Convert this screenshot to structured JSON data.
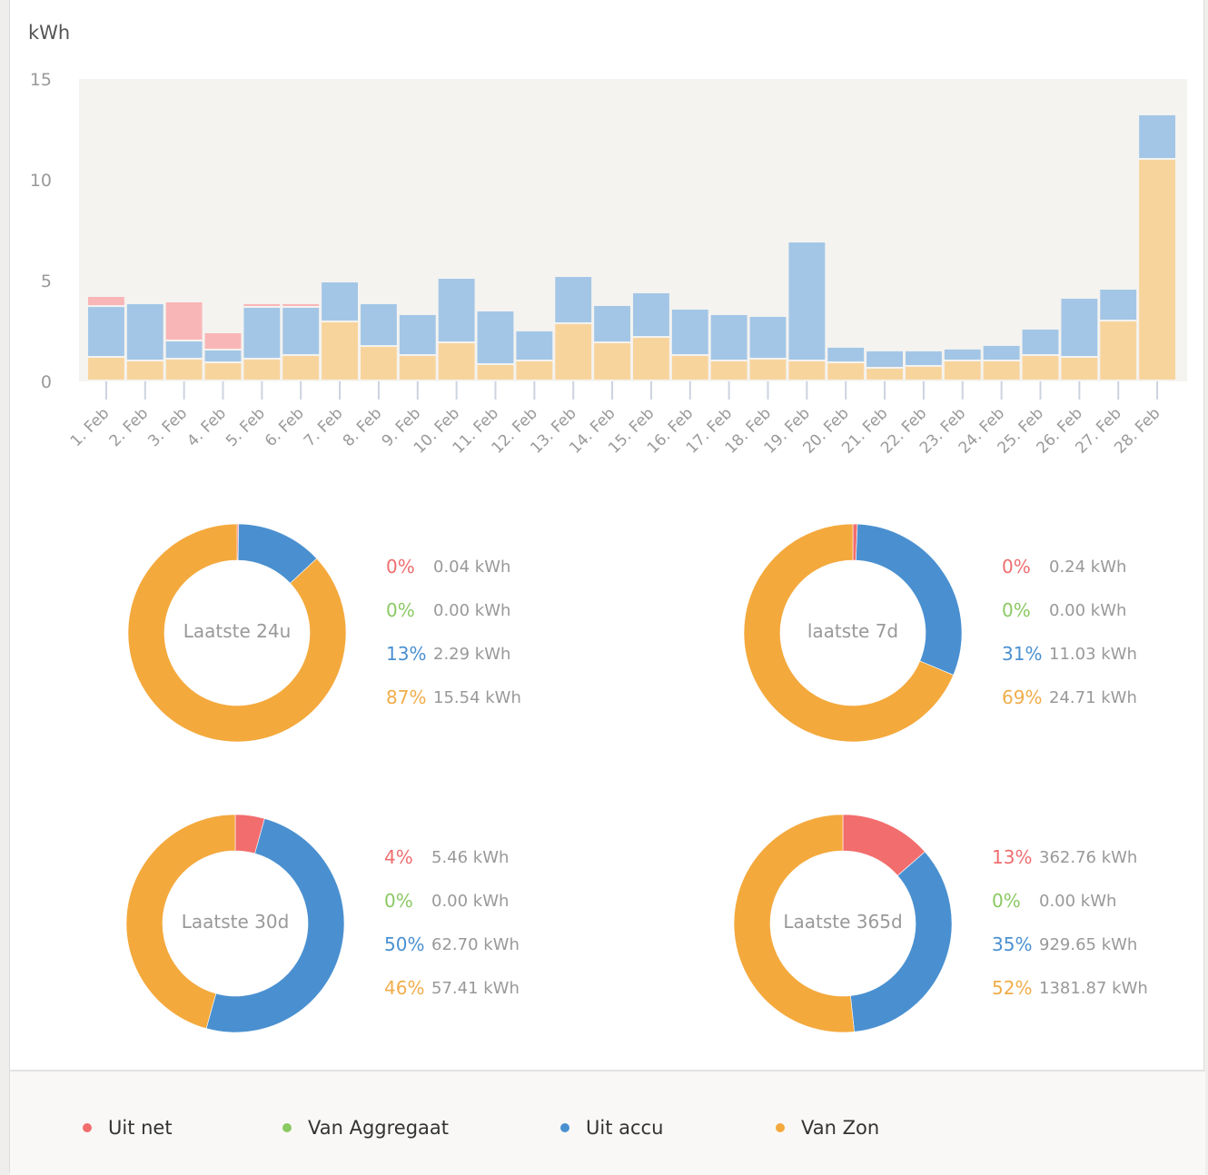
{
  "colors": {
    "uit_net": "#f26d6d",
    "van_aggregaat": "#8bc963",
    "uit_accu": "#4a90d0",
    "van_zon": "#f4a93d",
    "bar_uit_net": "#f9b6b6",
    "bar_uit_accu": "#a3c6e6",
    "bar_van_zon": "#f8d49d",
    "plot_bg": "#f4f3f0"
  },
  "chart_data": [
    {
      "type": "bar",
      "stacked": true,
      "title": "",
      "ylabel": "kWh",
      "xlabel": "",
      "ylim": [
        0,
        15
      ],
      "yticks": [
        0,
        5,
        10,
        15
      ],
      "grid": false,
      "categories": [
        "1. Feb",
        "2. Feb",
        "3. Feb",
        "4. Feb",
        "5. Feb",
        "6. Feb",
        "7. Feb",
        "8. Feb",
        "9. Feb",
        "10. Feb",
        "11. Feb",
        "12. Feb",
        "13. Feb",
        "14. Feb",
        "15. Feb",
        "16. Feb",
        "17. Feb",
        "18. Feb",
        "19. Feb",
        "20. Feb",
        "21. Feb",
        "22. Feb",
        "23. Feb",
        "24. Feb",
        "25. Feb",
        "26. Feb",
        "27. Feb",
        "28. Feb"
      ],
      "series": [
        {
          "name": "Van Zon",
          "key": "van_zon",
          "values": [
            1.17,
            0.99,
            1.08,
            0.9,
            1.08,
            1.26,
            2.93,
            1.71,
            1.26,
            1.89,
            0.81,
            0.99,
            2.84,
            1.89,
            2.16,
            1.26,
            0.99,
            1.08,
            0.99,
            0.9,
            0.63,
            0.72,
            0.99,
            0.99,
            1.26,
            1.17,
            2.97,
            10.99
          ]
        },
        {
          "name": "Uit accu",
          "key": "uit_accu",
          "values": [
            2.52,
            2.84,
            0.9,
            0.63,
            2.57,
            2.39,
            1.98,
            2.12,
            2.03,
            3.2,
            2.66,
            1.49,
            2.34,
            1.85,
            2.21,
            2.3,
            2.3,
            2.12,
            5.9,
            0.77,
            0.86,
            0.77,
            0.59,
            0.77,
            1.31,
            2.93,
            1.58,
            2.21
          ]
        },
        {
          "name": "Van Aggregaat",
          "key": "van_aggregaat",
          "values": [
            0,
            0,
            0,
            0,
            0,
            0,
            0,
            0,
            0,
            0,
            0,
            0,
            0,
            0,
            0,
            0,
            0,
            0,
            0,
            0,
            0,
            0,
            0,
            0,
            0,
            0,
            0,
            0
          ]
        },
        {
          "name": "Uit net",
          "key": "uit_net",
          "values": [
            0.5,
            0,
            1.94,
            0.86,
            0.18,
            0.18,
            0,
            0,
            0,
            0,
            0,
            0,
            0,
            0,
            0,
            0,
            0,
            0,
            0,
            0,
            0,
            0,
            0,
            0,
            0,
            0,
            0,
            0
          ]
        }
      ]
    },
    {
      "type": "pie",
      "donut": true,
      "title": "Laatste 24u",
      "slices": [
        {
          "name": "Uit net",
          "key": "uit_net",
          "pct": "0%",
          "kwh": "0.04 kWh",
          "value": 0.04
        },
        {
          "name": "Van Aggregaat",
          "key": "van_aggregaat",
          "pct": "0%",
          "kwh": "0.00 kWh",
          "value": 0.0
        },
        {
          "name": "Uit accu",
          "key": "uit_accu",
          "pct": "13%",
          "kwh": "2.29 kWh",
          "value": 2.29
        },
        {
          "name": "Van Zon",
          "key": "van_zon",
          "pct": "87%",
          "kwh": "15.54 kWh",
          "value": 15.54
        }
      ]
    },
    {
      "type": "pie",
      "donut": true,
      "title": "laatste 7d",
      "slices": [
        {
          "name": "Uit net",
          "key": "uit_net",
          "pct": "0%",
          "kwh": "0.24 kWh",
          "value": 0.24
        },
        {
          "name": "Van Aggregaat",
          "key": "van_aggregaat",
          "pct": "0%",
          "kwh": "0.00 kWh",
          "value": 0.0
        },
        {
          "name": "Uit accu",
          "key": "uit_accu",
          "pct": "31%",
          "kwh": "11.03 kWh",
          "value": 11.03
        },
        {
          "name": "Van Zon",
          "key": "van_zon",
          "pct": "69%",
          "kwh": "24.71 kWh",
          "value": 24.71
        }
      ]
    },
    {
      "type": "pie",
      "donut": true,
      "title": "Laatste 30d",
      "slices": [
        {
          "name": "Uit net",
          "key": "uit_net",
          "pct": "4%",
          "kwh": "5.46 kWh",
          "value": 5.46
        },
        {
          "name": "Van Aggregaat",
          "key": "van_aggregaat",
          "pct": "0%",
          "kwh": "0.00 kWh",
          "value": 0.0
        },
        {
          "name": "Uit accu",
          "key": "uit_accu",
          "pct": "50%",
          "kwh": "62.70 kWh",
          "value": 62.7
        },
        {
          "name": "Van Zon",
          "key": "van_zon",
          "pct": "46%",
          "kwh": "57.41 kWh",
          "value": 57.41
        }
      ]
    },
    {
      "type": "pie",
      "donut": true,
      "title": "Laatste 365d",
      "slices": [
        {
          "name": "Uit net",
          "key": "uit_net",
          "pct": "13%",
          "kwh": "362.76 kWh",
          "value": 362.76
        },
        {
          "name": "Van Aggregaat",
          "key": "van_aggregaat",
          "pct": "0%",
          "kwh": "0.00 kWh",
          "value": 0.0
        },
        {
          "name": "Uit accu",
          "key": "uit_accu",
          "pct": "35%",
          "kwh": "929.65 kWh",
          "value": 929.65
        },
        {
          "name": "Van Zon",
          "key": "van_zon",
          "pct": "52%",
          "kwh": "1381.87 kWh",
          "value": 1381.87
        }
      ]
    }
  ],
  "legend": [
    {
      "label": "Uit net",
      "key": "uit_net"
    },
    {
      "label": "Van Aggregaat",
      "key": "van_aggregaat"
    },
    {
      "label": "Uit accu",
      "key": "uit_accu"
    },
    {
      "label": "Van Zon",
      "key": "van_zon"
    }
  ],
  "unit_label": "kWh"
}
